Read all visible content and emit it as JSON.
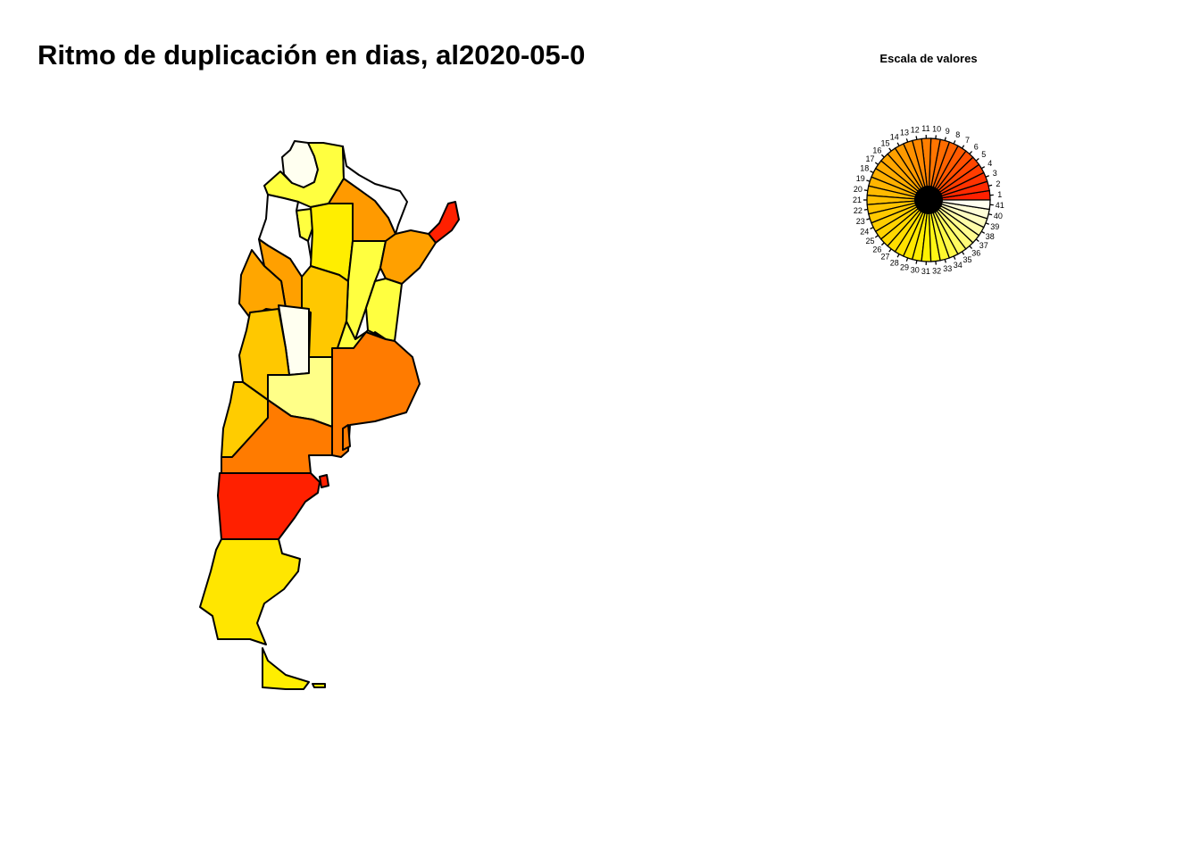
{
  "title": "Ritmo de duplicación en dias, al2020-05-0",
  "legend": {
    "title": "Escala de valores",
    "labels": [
      "1",
      "2",
      "3",
      "4",
      "5",
      "6",
      "7",
      "8",
      "9",
      "10",
      "11",
      "12",
      "13",
      "14",
      "15",
      "16",
      "17",
      "18",
      "19",
      "20",
      "21",
      "22",
      "23",
      "24",
      "25",
      "26",
      "27",
      "28",
      "29",
      "30",
      "31",
      "32",
      "33",
      "34",
      "35",
      "36",
      "37",
      "38",
      "39",
      "40",
      "41"
    ],
    "colors": [
      "#ff2000",
      "#ff2a00",
      "#ff3300",
      "#ff3d00",
      "#ff4600",
      "#ff4f00",
      "#ff5900",
      "#ff6200",
      "#ff6c00",
      "#ff7500",
      "#ff7e00",
      "#ff8800",
      "#ff9100",
      "#ff9a00",
      "#ffa000",
      "#ffa600",
      "#ffab00",
      "#ffb000",
      "#ffb500",
      "#ffba00",
      "#ffbf00",
      "#ffc400",
      "#ffc900",
      "#ffce00",
      "#ffd300",
      "#ffd800",
      "#ffdd00",
      "#ffe200",
      "#ffe700",
      "#ffec00",
      "#fff100",
      "#fff614",
      "#fff82e",
      "#fff948",
      "#fffa60",
      "#fffb78",
      "#fffc90",
      "#fffda8",
      "#fffec0",
      "#fffed8",
      "#fffff0"
    ]
  },
  "map": {
    "border_color": "#000000",
    "regions": [
      {
        "name": "jujuy",
        "color": "#fffff0"
      },
      {
        "name": "salta",
        "color": "#ffff40"
      },
      {
        "name": "formosa",
        "color": "#ff9a00"
      },
      {
        "name": "misiones",
        "color": "#ff2000"
      },
      {
        "name": "tucuman",
        "color": "#ffff40"
      },
      {
        "name": "catamarca",
        "color": "#fffff0"
      },
      {
        "name": "santiago-del-estero",
        "color": "#ffee00"
      },
      {
        "name": "chaco",
        "color": "#ffff40"
      },
      {
        "name": "corrientes",
        "color": "#ffa000"
      },
      {
        "name": "la-rioja",
        "color": "#ffa000"
      },
      {
        "name": "san-juan",
        "color": "#ffa600"
      },
      {
        "name": "cordoba",
        "color": "#ffc800"
      },
      {
        "name": "santa-fe",
        "color": "#ffff40"
      },
      {
        "name": "entre-rios",
        "color": "#ffff40"
      },
      {
        "name": "san-luis",
        "color": "#fffff0"
      },
      {
        "name": "mendoza",
        "color": "#ffc800"
      },
      {
        "name": "la-pampa",
        "color": "#ffff88"
      },
      {
        "name": "buenos-aires",
        "color": "#ff7b00"
      },
      {
        "name": "neuquen",
        "color": "#ffcc00"
      },
      {
        "name": "rio-negro",
        "color": "#ff7b00"
      },
      {
        "name": "chubut",
        "color": "#ff2000"
      },
      {
        "name": "santa-cruz",
        "color": "#ffe600"
      },
      {
        "name": "tierra-del-fuego",
        "color": "#ffee00"
      }
    ]
  }
}
